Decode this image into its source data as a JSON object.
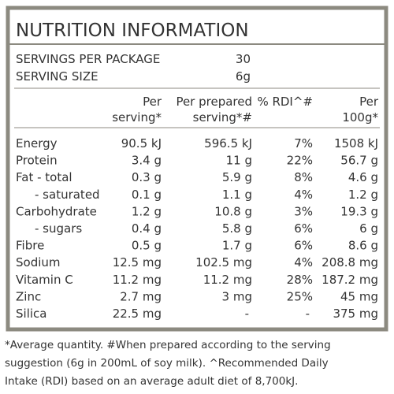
{
  "panel": {
    "title": "NUTRITION INFORMATION",
    "servings": [
      [
        "SERVINGS PER PACKAGE",
        "30"
      ],
      [
        "SERVING SIZE",
        "6g"
      ]
    ],
    "columns": [
      [
        "Per",
        "serving*"
      ],
      [
        "Per prepared",
        "serving*#"
      ],
      [
        "% RDI^#"
      ],
      [
        "Per",
        "100g*"
      ]
    ],
    "rows": [
      [
        "Energy",
        "90.5 kJ",
        "596.5 kJ",
        "7%",
        "1508 kJ"
      ],
      [
        "Protein",
        "3.4 g",
        "11 g",
        "22%",
        "56.7 g"
      ],
      [
        "Fat - total",
        "0.3 g",
        "5.9 g",
        "8%",
        "4.6 g"
      ],
      [
        "- saturated",
        "0.1 g",
        "1.1 g",
        "4%",
        "1.2 g"
      ],
      [
        "Carbohydrate",
        "1.2 g",
        "10.8 g",
        "3%",
        "19.3 g"
      ],
      [
        "- sugars",
        "0.4 g",
        "5.8 g",
        "6%",
        "6 g"
      ],
      [
        "Fibre",
        "0.5 g",
        "1.7 g",
        "6%",
        "8.6 g"
      ],
      [
        "Sodium",
        "12.5 mg",
        "102.5 mg",
        "4%",
        "208.8 mg"
      ],
      [
        "Vitamin C",
        "11.2 mg",
        "11.2 mg",
        "28%",
        "187.2 mg"
      ],
      [
        "Zinc",
        "2.7 mg",
        "3 mg",
        "25%",
        "45 mg"
      ],
      [
        "Silica",
        "22.5 mg",
        "-",
        "-",
        "375 mg"
      ]
    ]
  },
  "footnote": [
    "*Average quantity. #When prepared according to the serving",
    "suggestion (6g in 200mL of soy milk). ^Recommended Daily",
    "Intake (RDI) based on an average adult diet of 8,700kJ."
  ]
}
